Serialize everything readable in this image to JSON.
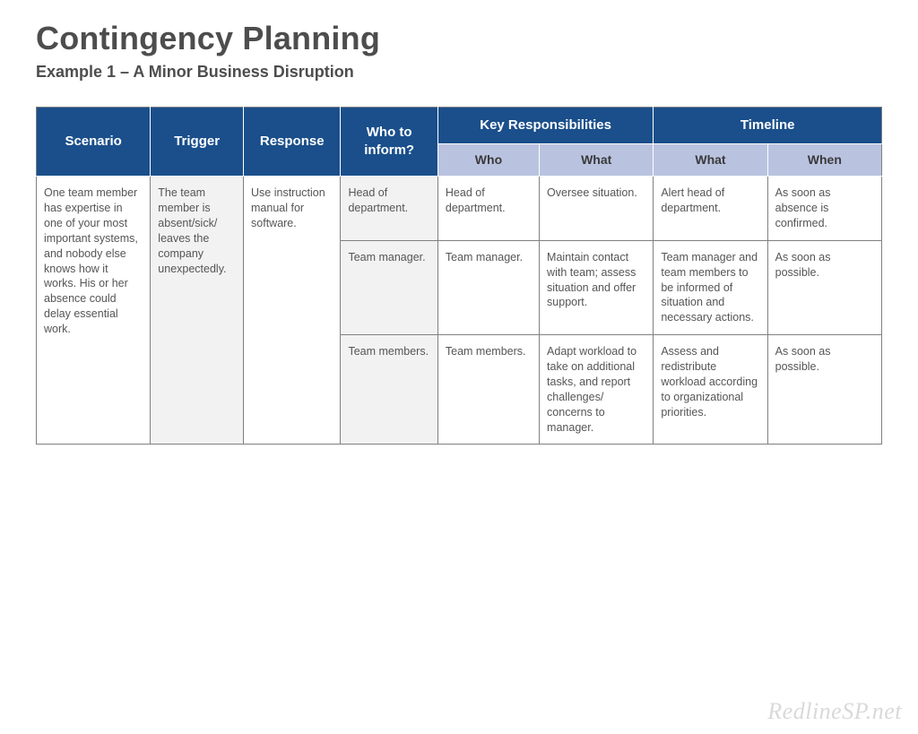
{
  "title": "Contingency Planning",
  "subtitle": "Example 1 – A Minor Business Disruption",
  "table": {
    "header_bg_primary": "#1a4f8b",
    "header_bg_secondary": "#b9c3e0",
    "header_text_color": "#ffffff",
    "border_color": "#808080",
    "alt_fill": "#f2f2f2",
    "columns": {
      "scenario": "Scenario",
      "trigger": "Trigger",
      "response": "Response",
      "inform": "Who to inform?",
      "key_resp": "Key Responsibilities",
      "key_who": "Who",
      "key_what": "What",
      "timeline": "Timeline",
      "tl_what": "What",
      "tl_when": "When"
    },
    "scenario": "One team member has expertise in one of your most important systems, and nobody else knows how it works. His or her absence could delay essential work.",
    "trigger": "The team member is absent/sick/ leaves the company unexpectedly.",
    "response": "Use instruction manual for software.",
    "rows": [
      {
        "inform": "Head of department.",
        "who": "Head of department.",
        "what": "Oversee situation.",
        "tl_what": "Alert head of department.",
        "tl_when": "As soon as absence is confirmed."
      },
      {
        "inform": "Team manager.",
        "who": "Team manager.",
        "what": "Maintain contact with team; assess situation and offer support.",
        "tl_what": "Team manager and team members to be informed of situation and necessary actions.",
        "tl_when": "As soon as possible."
      },
      {
        "inform": "Team members.",
        "who": "Team members.",
        "what": "Adapt workload to take on additional tasks, and report challenges/ concerns to manager.",
        "tl_what": "Assess and redistribute workload according to organizational priorities.",
        "tl_when": "As soon as possible."
      }
    ]
  },
  "watermark": "RedlineSP.net"
}
